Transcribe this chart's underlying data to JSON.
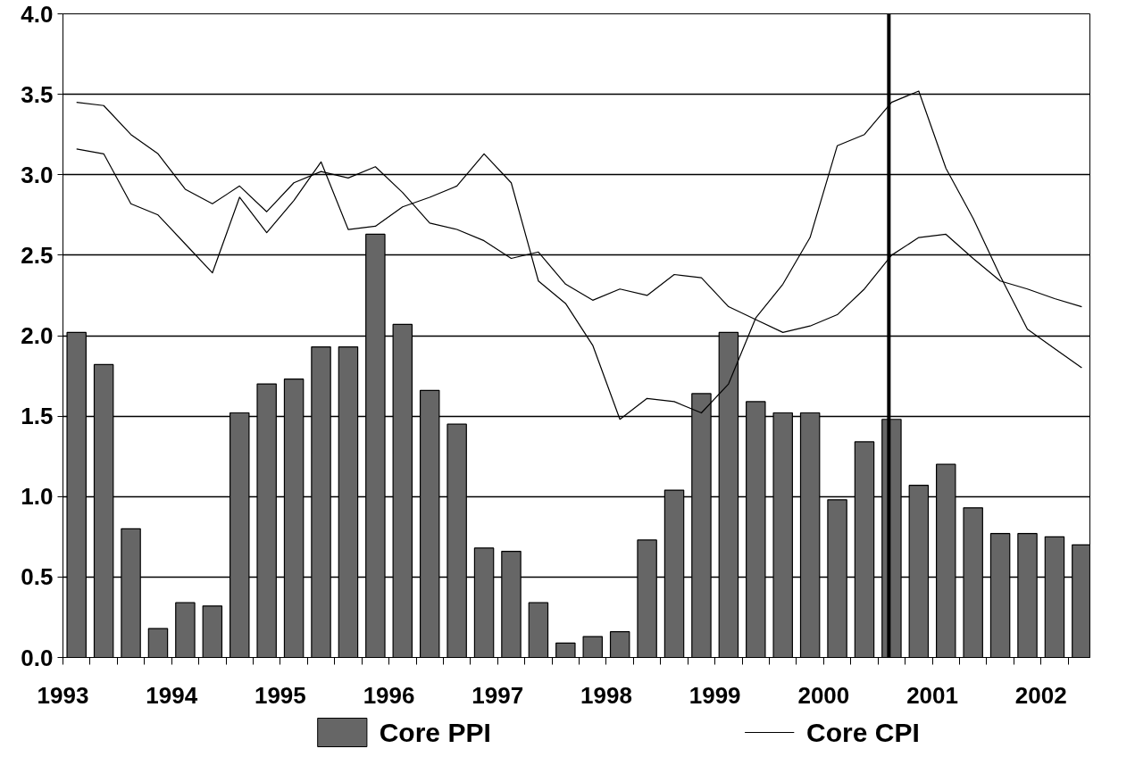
{
  "chart_data": {
    "type": "bar",
    "x": [
      1993.125,
      1993.375,
      1993.625,
      1993.875,
      1994.125,
      1994.375,
      1994.625,
      1994.875,
      1995.125,
      1995.375,
      1995.625,
      1995.875,
      1996.125,
      1996.375,
      1996.625,
      1996.875,
      1997.125,
      1997.375,
      1997.625,
      1997.875,
      1998.125,
      1998.375,
      1998.625,
      1998.875,
      1999.125,
      1999.375,
      1999.625,
      1999.875,
      2000.125,
      2000.375,
      2000.625,
      2000.875,
      2001.125,
      2001.375,
      2001.625,
      2001.875,
      2002.125,
      2002.375
    ],
    "series": [
      {
        "name": "Core PPI",
        "color": "#666666",
        "values": [
          2.02,
          1.82,
          0.8,
          0.18,
          0.34,
          0.32,
          1.52,
          1.7,
          1.73,
          1.93,
          1.93,
          2.63,
          2.07,
          1.66,
          1.45,
          0.68,
          0.66,
          0.34,
          0.09,
          0.13,
          0.16,
          0.73,
          1.04,
          1.64,
          2.02,
          1.59,
          1.52,
          1.52,
          0.98,
          1.34,
          1.48,
          1.07,
          1.2,
          0.93,
          0.77,
          0.77,
          0.75,
          0.7
        ]
      },
      {
        "name": "Core CPI",
        "color": "#000000",
        "type": "line",
        "values": [
          3.45,
          3.43,
          3.25,
          3.13,
          2.91,
          2.82,
          2.93,
          2.77,
          2.95,
          3.02,
          2.98,
          3.05,
          2.89,
          2.7,
          2.66,
          2.59,
          2.48,
          2.52,
          2.32,
          2.22,
          2.29,
          2.25,
          2.38,
          2.36,
          2.18,
          2.1,
          2.02,
          2.06,
          2.13,
          2.29,
          2.5,
          2.61,
          2.63,
          2.48,
          2.34,
          2.29,
          2.23,
          2.18
        ]
      },
      {
        "color": "#000000",
        "type": "line",
        "values": [
          3.16,
          3.13,
          2.82,
          2.75,
          2.57,
          2.39,
          2.86,
          2.64,
          2.84,
          3.08,
          2.66,
          2.68,
          2.8,
          2.86,
          2.93,
          3.13,
          2.95,
          2.34,
          2.2,
          1.94,
          1.48,
          1.61,
          1.59,
          1.52,
          1.7,
          2.11,
          2.32,
          2.61,
          3.18,
          3.25,
          3.45,
          3.52,
          3.04,
          2.73,
          2.37,
          2.04,
          1.92,
          1.8
        ]
      }
    ],
    "xlim": [
      1993,
      2002.45
    ],
    "xticks": [
      1993,
      {
        "value": 1993.25,
        "label": null
      },
      {
        "value": 1993.5,
        "label": null
      },
      {
        "value": 1993.75,
        "label": null
      },
      1994,
      {
        "value": 1994.25,
        "label": null
      },
      {
        "value": 1994.5,
        "label": null
      },
      {
        "value": 1994.75,
        "label": null
      },
      1995,
      {
        "value": 1995.25,
        "label": null
      },
      {
        "value": 1995.5,
        "label": null
      },
      {
        "value": 1995.75,
        "label": null
      },
      1996,
      {
        "value": 1996.25,
        "label": null
      },
      {
        "value": 1996.5,
        "label": null
      },
      {
        "value": 1996.75,
        "label": null
      },
      1997,
      {
        "value": 1997.25,
        "label": null
      },
      {
        "value": 1997.5,
        "label": null
      },
      {
        "value": 1997.75,
        "label": null
      },
      1998,
      {
        "value": 1998.25,
        "label": null
      },
      {
        "value": 1998.5,
        "label": null
      },
      {
        "value": 1998.75,
        "label": null
      },
      1999,
      {
        "value": 1999.25,
        "label": null
      },
      {
        "value": 1999.5,
        "label": null
      },
      {
        "value": 1999.75,
        "label": null
      },
      2000,
      {
        "value": 2000.25,
        "label": null
      },
      {
        "value": 2000.5,
        "label": null
      },
      {
        "value": 2000.75,
        "label": null
      },
      2001,
      {
        "value": 2001.25,
        "label": null
      },
      {
        "value": 2001.5,
        "label": null
      },
      {
        "value": 2001.75,
        "label": null
      },
      2002,
      {
        "value": 2002.25,
        "label": null
      }
    ],
    "ylim": [
      0,
      4
    ],
    "yticks": [
      {
        "value": 0,
        "label": "0.0"
      },
      {
        "value": 0.5,
        "label": "0.5"
      },
      {
        "value": 1,
        "label": "1.0"
      },
      {
        "value": 1.5,
        "label": "1.5"
      },
      {
        "value": 2,
        "label": "2.0"
      },
      {
        "value": 2.5,
        "label": "2.5"
      },
      {
        "value": 3,
        "label": "3.0"
      },
      {
        "value": 3.5,
        "label": "3.5"
      },
      {
        "value": 4,
        "label": "4.0"
      }
    ],
    "ref_lines": [
      {
        "axis": "x",
        "value": 2000.6,
        "color": "#000000"
      }
    ],
    "grid": "y",
    "legend": "bottom",
    "line_style": "solid"
  }
}
